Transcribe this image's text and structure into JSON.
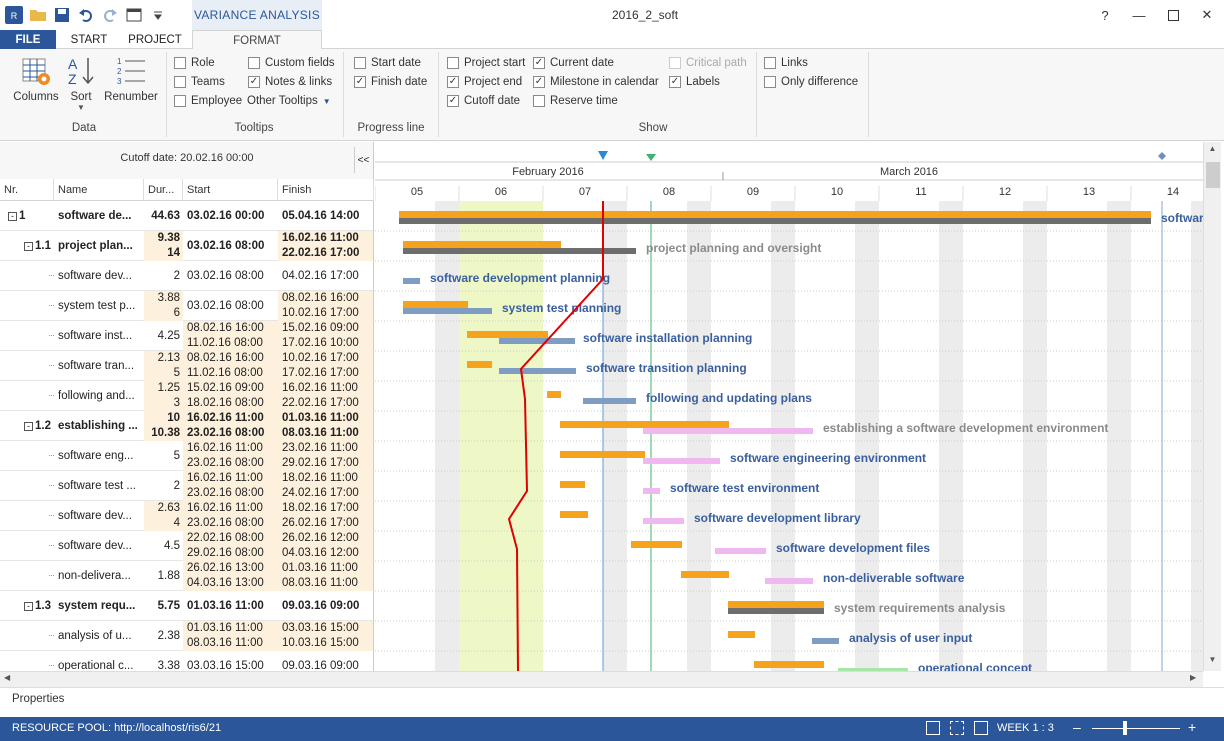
{
  "app": {
    "title": "2016_2_soft",
    "context_tab": "VARIANCE ANALYSIS",
    "logo": "RIS"
  },
  "tabs": [
    {
      "label": "FILE"
    },
    {
      "label": "START"
    },
    {
      "label": "PROJECT"
    },
    {
      "label": "FORMAT"
    }
  ],
  "ribbon": {
    "data_group": {
      "label": "Data",
      "columns": "Columns",
      "sort": "Sort",
      "renumber": "Renumber"
    },
    "tooltips_group": {
      "label": "Tooltips",
      "role": "Role",
      "teams": "Teams",
      "employee": "Employee",
      "custom_fields": "Custom fields",
      "notes_links": "Notes & links",
      "other_tooltips": "Other Tooltips"
    },
    "progress_group": {
      "label": "Progress line",
      "start_date": "Start date",
      "finish_date": "Finish date"
    },
    "show_group": {
      "label": "Show",
      "project_start": "Project start",
      "project_end": "Project end",
      "cutoff_date": "Cutoff date",
      "current_date": "Current date",
      "milestone": "Milestone in calendar",
      "reserve_time": "Reserve time",
      "critical_path": "Critical path",
      "labels": "Labels",
      "links": "Links",
      "only_difference": "Only difference"
    }
  },
  "table": {
    "cutoff": "Cutoff date: 20.02.16 00:00",
    "collapse": "<<",
    "headers": {
      "nr": "Nr.",
      "name": "Name",
      "dur": "Dur...",
      "start": "Start",
      "finish": "Finish"
    },
    "rows": [
      {
        "nr": "1",
        "name": "software de...",
        "dur": [
          "44.63"
        ],
        "start": [
          "03.02.16 00:00"
        ],
        "finish": [
          "05.04.16 14:00"
        ],
        "level": 0,
        "bold": true
      },
      {
        "nr": "1.1",
        "name": "project plan...",
        "dur": [
          "9.38",
          "14"
        ],
        "start": [
          "03.02.16 08:00"
        ],
        "finish": [
          "16.02.16 11:00",
          "22.02.16 17:00"
        ],
        "level": 1,
        "bold": true
      },
      {
        "nr": "",
        "name": "software dev...",
        "dur": [
          "2"
        ],
        "start": [
          "03.02.16 08:00"
        ],
        "finish": [
          "04.02.16 17:00"
        ],
        "level": 2
      },
      {
        "nr": "",
        "name": "system test p...",
        "dur": [
          "3.88",
          "6"
        ],
        "start": [
          "03.02.16 08:00"
        ],
        "finish": [
          "08.02.16 16:00",
          "10.02.16 17:00"
        ],
        "level": 2
      },
      {
        "nr": "",
        "name": "software inst...",
        "dur": [
          "4.25"
        ],
        "start": [
          "08.02.16 16:00",
          "11.02.16 08:00"
        ],
        "finish": [
          "15.02.16 09:00",
          "17.02.16 10:00"
        ],
        "level": 2
      },
      {
        "nr": "",
        "name": "software tran...",
        "dur": [
          "2.13",
          "5"
        ],
        "start": [
          "08.02.16 16:00",
          "11.02.16 08:00"
        ],
        "finish": [
          "10.02.16 17:00",
          "17.02.16 17:00"
        ],
        "level": 2
      },
      {
        "nr": "",
        "name": "following and...",
        "dur": [
          "1.25",
          "3"
        ],
        "start": [
          "15.02.16 09:00",
          "18.02.16 08:00"
        ],
        "finish": [
          "16.02.16 11:00",
          "22.02.16 17:00"
        ],
        "level": 2
      },
      {
        "nr": "1.2",
        "name": "establishing ...",
        "dur": [
          "10",
          "10.38"
        ],
        "start": [
          "16.02.16 11:00",
          "23.02.16 08:00"
        ],
        "finish": [
          "01.03.16 11:00",
          "08.03.16 11:00"
        ],
        "level": 1,
        "bold": true
      },
      {
        "nr": "",
        "name": "software eng...",
        "dur": [
          "5"
        ],
        "start": [
          "16.02.16 11:00",
          "23.02.16 08:00"
        ],
        "finish": [
          "23.02.16 11:00",
          "29.02.16 17:00"
        ],
        "level": 2
      },
      {
        "nr": "",
        "name": "software test ...",
        "dur": [
          "2"
        ],
        "start": [
          "16.02.16 11:00",
          "23.02.16 08:00"
        ],
        "finish": [
          "18.02.16 11:00",
          "24.02.16 17:00"
        ],
        "level": 2
      },
      {
        "nr": "",
        "name": "software dev...",
        "dur": [
          "2.63",
          "4"
        ],
        "start": [
          "16.02.16 11:00",
          "23.02.16 08:00"
        ],
        "finish": [
          "18.02.16 17:00",
          "26.02.16 17:00"
        ],
        "level": 2
      },
      {
        "nr": "",
        "name": "software dev...",
        "dur": [
          "4.5"
        ],
        "start": [
          "22.02.16 08:00",
          "29.02.16 08:00"
        ],
        "finish": [
          "26.02.16 12:00",
          "04.03.16 12:00"
        ],
        "level": 2
      },
      {
        "nr": "",
        "name": "non-delivera...",
        "dur": [
          "1.88"
        ],
        "start": [
          "26.02.16 13:00",
          "04.03.16 13:00"
        ],
        "finish": [
          "01.03.16 11:00",
          "08.03.16 11:00"
        ],
        "level": 2
      },
      {
        "nr": "1.3",
        "name": "system requ...",
        "dur": [
          "5.75"
        ],
        "start": [
          "01.03.16 11:00"
        ],
        "finish": [
          "09.03.16 09:00"
        ],
        "level": 1,
        "bold": true
      },
      {
        "nr": "",
        "name": "analysis of u...",
        "dur": [
          "2.38"
        ],
        "start": [
          "01.03.16 11:00",
          "08.03.16 11:00"
        ],
        "finish": [
          "03.03.16 15:00",
          "10.03.16 15:00"
        ],
        "level": 2
      },
      {
        "nr": "",
        "name": "operational c...",
        "dur": [
          "3.38"
        ],
        "start": [
          "03.03.16 15:00"
        ],
        "finish": [
          "09.03.16 09:00"
        ],
        "level": 2
      }
    ]
  },
  "gantt": {
    "months": [
      {
        "label": "February 2016"
      },
      {
        "label": "March 2016"
      }
    ],
    "weeks": [
      "05",
      "06",
      "07",
      "08",
      "09",
      "10",
      "11",
      "12",
      "13",
      "14"
    ],
    "labels": [
      "software",
      "project planning and oversight",
      "software development planning",
      "system test planning",
      "software installation planning",
      "software transition planning",
      "following and updating plans",
      "establishing a software development environment",
      "software engineering environment",
      "software test environment",
      "software development library",
      "software development files",
      "non-deliverable software",
      "system requirements analysis",
      "analysis of user input",
      "operational concept"
    ],
    "colors": {
      "planned": "#f5a21c",
      "actual": "#7f9cc3",
      "summary_actual": "#6d6d6d",
      "baseline_pink": "#f0b8f0",
      "progress": "#e00000",
      "highlight": "#eef7c6"
    }
  },
  "footer": {
    "properties": "Properties"
  },
  "status": {
    "resource_pool": "RESOURCE POOL: http://localhost/ris6/21",
    "zoom": "WEEK 1 : 3"
  }
}
